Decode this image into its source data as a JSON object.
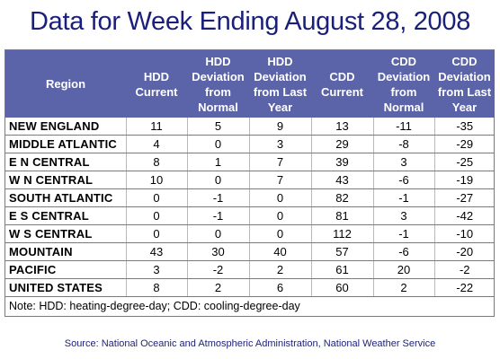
{
  "title": "Data for Week Ending August 28, 2008",
  "columns": [
    "Region",
    "HDD Current",
    "HDD Deviation from Normal",
    "HDD Deviation from Last Year",
    "CDD Current",
    "CDD Deviation from Normal",
    "CDD Deviation from Last Year"
  ],
  "rows": [
    {
      "region": "NEW ENGLAND",
      "values": [
        "11",
        "5",
        "9",
        "13",
        "-11",
        "-35"
      ]
    },
    {
      "region": "MIDDLE ATLANTIC",
      "values": [
        "4",
        "0",
        "3",
        "29",
        "-8",
        "-29"
      ]
    },
    {
      "region": "E N CENTRAL",
      "values": [
        "8",
        "1",
        "7",
        "39",
        "3",
        "-25"
      ]
    },
    {
      "region": "W N CENTRAL",
      "values": [
        "10",
        "0",
        "7",
        "43",
        "-6",
        "-19"
      ]
    },
    {
      "region": "SOUTH ATLANTIC",
      "values": [
        "0",
        "-1",
        "0",
        "82",
        "-1",
        "-27"
      ]
    },
    {
      "region": "E S CENTRAL",
      "values": [
        "0",
        "-1",
        "0",
        "81",
        "3",
        "-42"
      ]
    },
    {
      "region": "W S CENTRAL",
      "values": [
        "0",
        "0",
        "0",
        "112",
        "-1",
        "-10"
      ]
    },
    {
      "region": "MOUNTAIN",
      "values": [
        "43",
        "30",
        "40",
        "57",
        "-6",
        "-20"
      ]
    },
    {
      "region": "PACIFIC",
      "values": [
        "3",
        "-2",
        "2",
        "61",
        "20",
        "-2"
      ]
    },
    {
      "region": "UNITED STATES",
      "values": [
        "8",
        "2",
        "6",
        "60",
        "2",
        "-22"
      ]
    }
  ],
  "note": "Note: HDD: heating-degree-day; CDD: cooling-degree-day",
  "source": "Source:  National Oceanic and Atmospheric Administration, National Weather Service",
  "colors": {
    "title": "#1a1f7a",
    "header_bg": "#5b64a8",
    "header_text": "#ffffff"
  }
}
